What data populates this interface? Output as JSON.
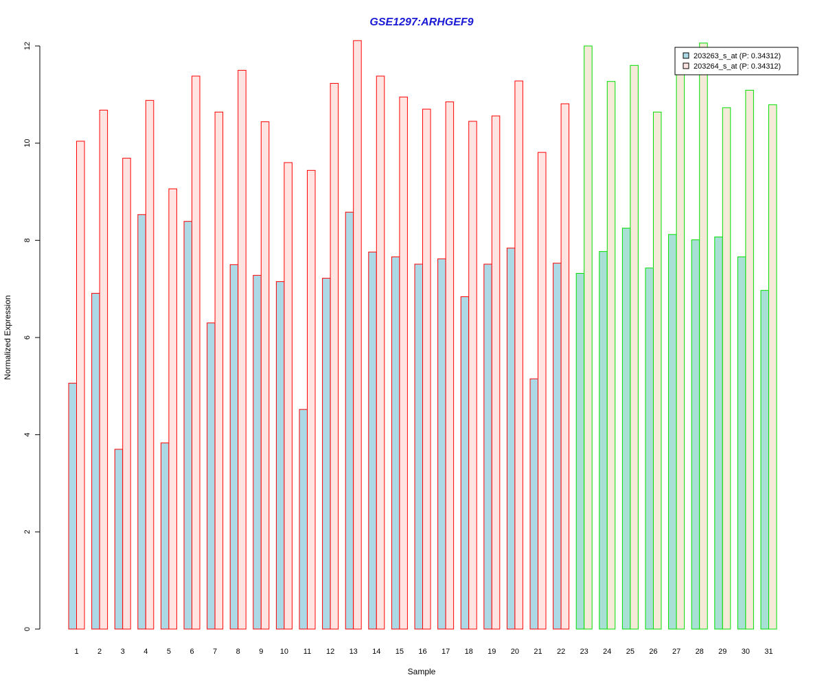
{
  "chart_data": {
    "type": "bar",
    "title": "GSE1297:ARHGEF9",
    "xlabel": "Sample",
    "ylabel": "Normalized Expression",
    "ylim": [
      0,
      12
    ],
    "yticks": [
      0,
      2,
      4,
      6,
      8,
      10,
      12
    ],
    "grid": false,
    "legend_position": "top-right",
    "categories": [
      "1",
      "2",
      "3",
      "4",
      "5",
      "6",
      "7",
      "8",
      "9",
      "10",
      "11",
      "12",
      "13",
      "14",
      "15",
      "16",
      "17",
      "18",
      "19",
      "20",
      "21",
      "22",
      "23",
      "24",
      "25",
      "26",
      "27",
      "28",
      "29",
      "30",
      "31"
    ],
    "group_split_after": 22,
    "group_border_colors": [
      "#ff0000",
      "#00dd00"
    ],
    "series": [
      {
        "name": "203263_s_at (P: 0.34312)",
        "colors": [
          "#add8e6",
          "#a8e0d6"
        ],
        "values": [
          5.06,
          6.91,
          3.7,
          8.53,
          3.83,
          8.39,
          6.3,
          7.5,
          7.28,
          7.15,
          4.52,
          7.22,
          8.58,
          7.76,
          7.66,
          7.51,
          7.62,
          6.84,
          7.51,
          7.84,
          5.15,
          7.53,
          7.32,
          7.77,
          8.25,
          7.43,
          8.12,
          8.01,
          8.07,
          7.66,
          6.97
        ]
      },
      {
        "name": "203264_s_at (P: 0.34312)",
        "colors": [
          "#ffe4e1",
          "#f5ead8"
        ],
        "values": [
          10.04,
          10.68,
          9.69,
          10.88,
          9.06,
          11.38,
          10.64,
          11.5,
          10.44,
          9.6,
          9.44,
          11.23,
          12.11,
          11.38,
          10.95,
          10.7,
          10.85,
          10.45,
          10.56,
          11.28,
          9.81,
          10.81,
          12.0,
          11.27,
          11.6,
          10.64,
          11.57,
          12.06,
          10.73,
          11.09,
          10.79
        ]
      }
    ]
  }
}
